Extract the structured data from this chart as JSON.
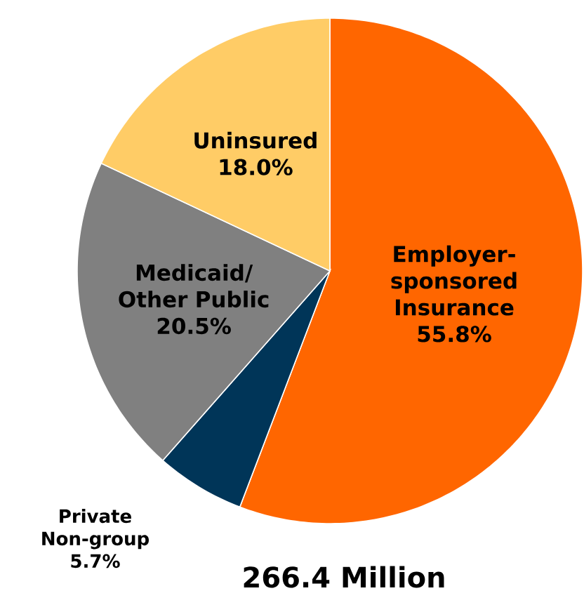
{
  "chart_data": {
    "type": "pie",
    "title": "266.4 Million",
    "categories": [
      "Employer-sponsored Insurance",
      "Private Non-group",
      "Medicaid/ Other Public",
      "Uninsured"
    ],
    "values": [
      55.8,
      5.7,
      20.5,
      18.0
    ],
    "value_labels": [
      "55.8%",
      "5.7%",
      "20.5%",
      "18.0%"
    ],
    "colors": [
      "#ff6600",
      "#003558",
      "#808080",
      "#ffcc66"
    ]
  }
}
